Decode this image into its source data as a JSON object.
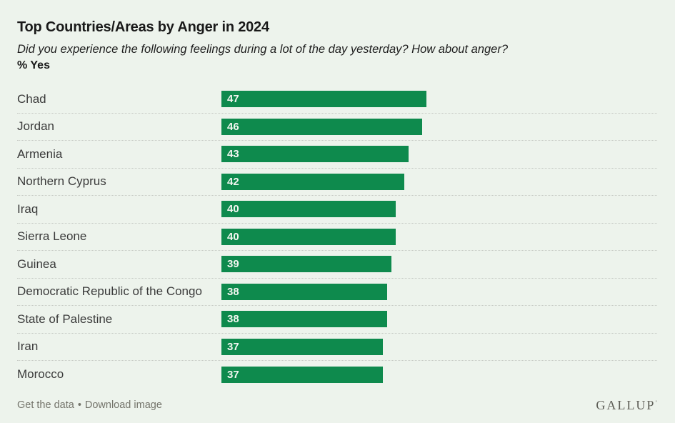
{
  "chart_data": {
    "type": "bar",
    "orientation": "horizontal",
    "title": "Top Countries/Areas by Anger in 2024",
    "subtitle": "Did you experience the following feelings during a lot of the day yesterday? How about anger?",
    "unit_label": "% Yes",
    "categories": [
      "Chad",
      "Jordan",
      "Armenia",
      "Northern Cyprus",
      "Iraq",
      "Sierra Leone",
      "Guinea",
      "Democratic Republic of the Congo",
      "State of Palestine",
      "Iran",
      "Morocco"
    ],
    "values": [
      47,
      46,
      43,
      42,
      40,
      40,
      39,
      38,
      38,
      37,
      37
    ],
    "xlim": [
      0,
      100
    ],
    "value_label_position": "inside-left",
    "grid": "dotted-row-separators",
    "legend": "none",
    "bar_color": "#0e8a4d"
  },
  "footer": {
    "links": [
      {
        "label": "Get the data"
      },
      {
        "label": "Download image"
      }
    ],
    "separator": "•",
    "brand": "GALLUP",
    "brand_mark": "’"
  },
  "colors": {
    "background": "#edf3ec",
    "page_background": "#ffffff",
    "bar": "#0e8a4d",
    "bar_value_text": "#f0f5ef",
    "title_text": "#191919",
    "country_text": "#3b3b3b",
    "separator_line": "#c6cac4",
    "footer_link_text": "#74746b",
    "brand_text": "#5e5e57"
  }
}
